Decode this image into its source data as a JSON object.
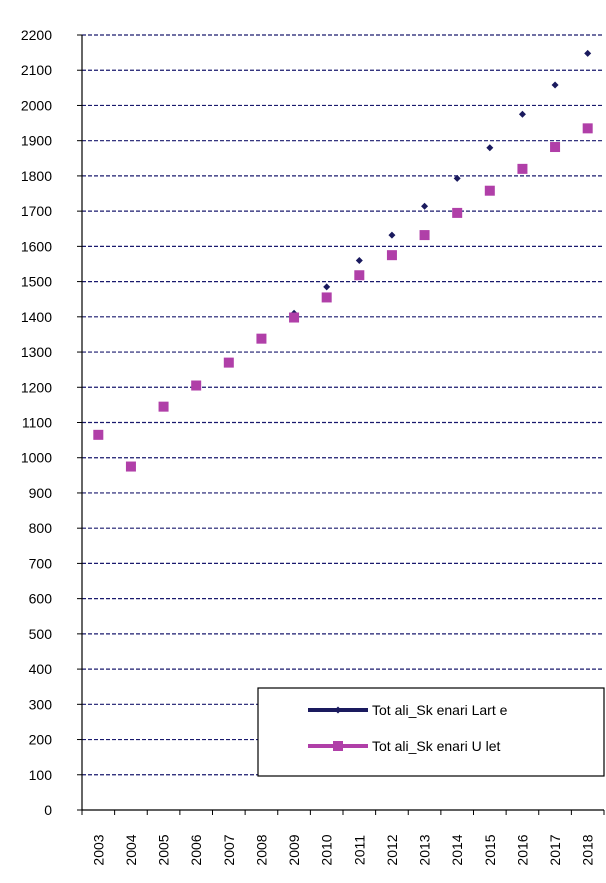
{
  "chart_data": {
    "type": "scatter",
    "title": "",
    "xlabel": "",
    "ylabel": "",
    "categories": [
      "2003",
      "2004",
      "2005",
      "2006",
      "2007",
      "2008",
      "2009",
      "2010",
      "2011",
      "2012",
      "2013",
      "2014",
      "2015",
      "2016",
      "2017",
      "2018"
    ],
    "ylim": [
      0,
      2200
    ],
    "yticks": [
      0,
      100,
      200,
      300,
      400,
      500,
      600,
      700,
      800,
      900,
      1000,
      1100,
      1200,
      1300,
      1400,
      1500,
      1600,
      1700,
      1800,
      1900,
      2000,
      2100,
      2200
    ],
    "grid": true,
    "legend_position": "bottom-right",
    "series": [
      {
        "name": "Tot ali_Sk enari  Lart e",
        "marker": "diamond",
        "color": "#1a1a5e",
        "values": [
          null,
          null,
          null,
          null,
          null,
          null,
          1410,
          1485,
          1560,
          1632,
          1714,
          1793,
          1880,
          1975,
          2058,
          2148
        ]
      },
      {
        "name": "Tot ali_Sk enari  U let",
        "marker": "square",
        "color": "#b03fa8",
        "values": [
          1065,
          975,
          1145,
          1205,
          1270,
          1338,
          1398,
          1455,
          1518,
          1575,
          1632,
          1695,
          1758,
          1820,
          1882,
          1935
        ]
      }
    ]
  }
}
